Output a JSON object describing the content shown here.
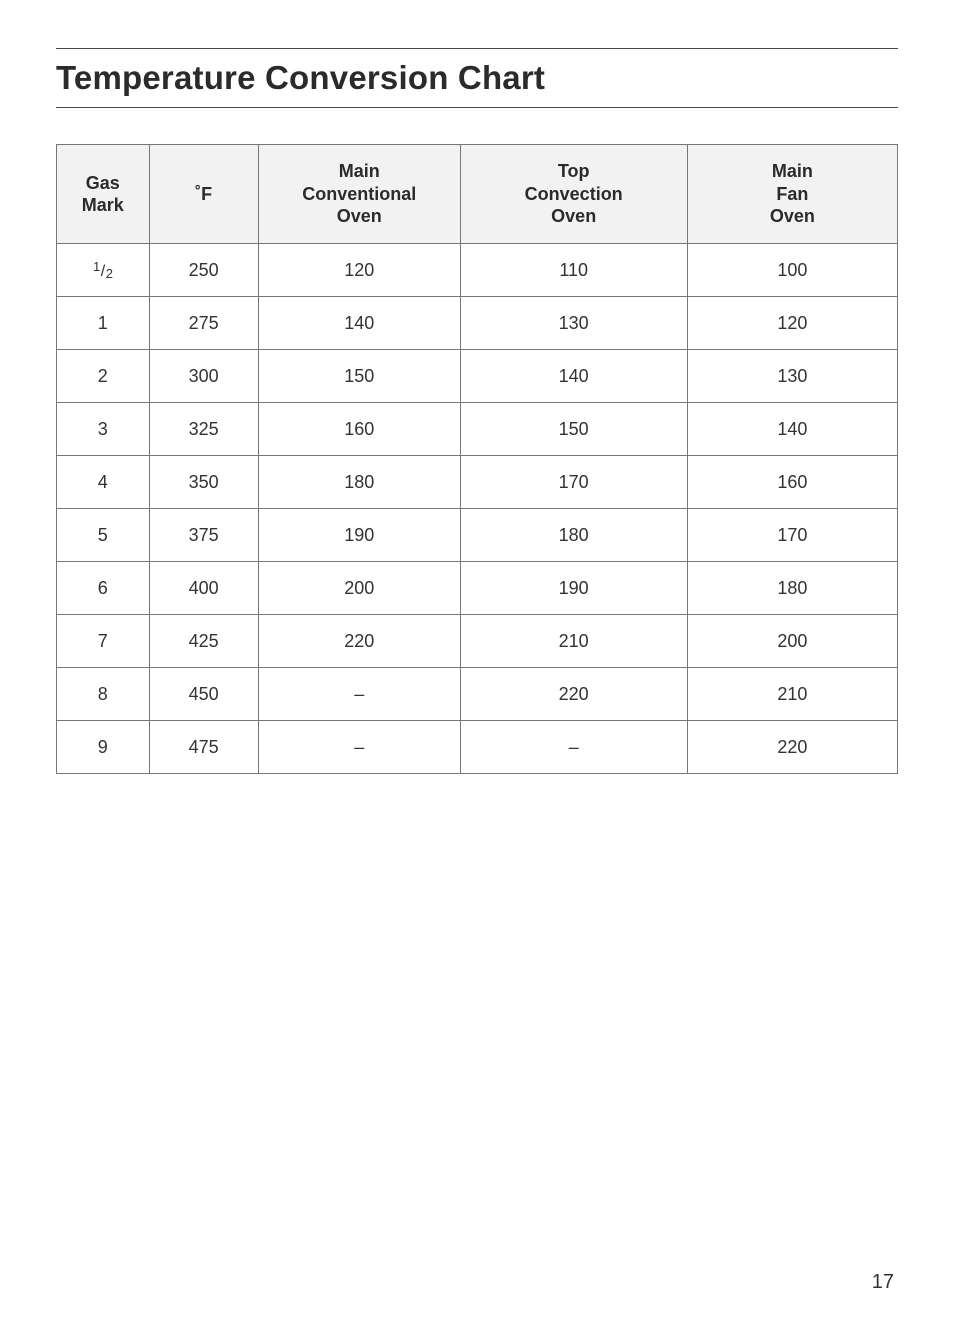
{
  "title": "Temperature Conversion Chart",
  "page_number": "17",
  "table": {
    "type": "table",
    "border_color": "#777777",
    "header_bg": "#f2f2f2",
    "text_color": "#333333",
    "columns": [
      {
        "key": "gas_mark",
        "lines": [
          "Gas",
          "Mark"
        ],
        "width_pct": 11
      },
      {
        "key": "f",
        "lines": [
          "˚F"
        ],
        "width_pct": 13
      },
      {
        "key": "main_conv",
        "lines": [
          "Main",
          "Conventional",
          "Oven"
        ],
        "width_pct": 24
      },
      {
        "key": "top_conv",
        "lines": [
          "Top",
          "Convection",
          "Oven"
        ],
        "width_pct": 27
      },
      {
        "key": "main_fan",
        "lines": [
          "Main",
          "Fan",
          "Oven"
        ],
        "width_pct": 25
      }
    ],
    "rows": [
      {
        "gas_mark": "1/2",
        "gas_mark_is_fraction": true,
        "f": "250",
        "main_conv": "120",
        "top_conv": "110",
        "main_fan": "100"
      },
      {
        "gas_mark": "1",
        "f": "275",
        "main_conv": "140",
        "top_conv": "130",
        "main_fan": "120"
      },
      {
        "gas_mark": "2",
        "f": "300",
        "main_conv": "150",
        "top_conv": "140",
        "main_fan": "130"
      },
      {
        "gas_mark": "3",
        "f": "325",
        "main_conv": "160",
        "top_conv": "150",
        "main_fan": "140"
      },
      {
        "gas_mark": "4",
        "f": "350",
        "main_conv": "180",
        "top_conv": "170",
        "main_fan": "160"
      },
      {
        "gas_mark": "5",
        "f": "375",
        "main_conv": "190",
        "top_conv": "180",
        "main_fan": "170"
      },
      {
        "gas_mark": "6",
        "f": "400",
        "main_conv": "200",
        "top_conv": "190",
        "main_fan": "180"
      },
      {
        "gas_mark": "7",
        "f": "425",
        "main_conv": "220",
        "top_conv": "210",
        "main_fan": "200"
      },
      {
        "gas_mark": "8",
        "f": "450",
        "main_conv": "–",
        "top_conv": "220",
        "main_fan": "210"
      },
      {
        "gas_mark": "9",
        "f": "475",
        "main_conv": "–",
        "top_conv": "–",
        "main_fan": "220"
      }
    ]
  }
}
